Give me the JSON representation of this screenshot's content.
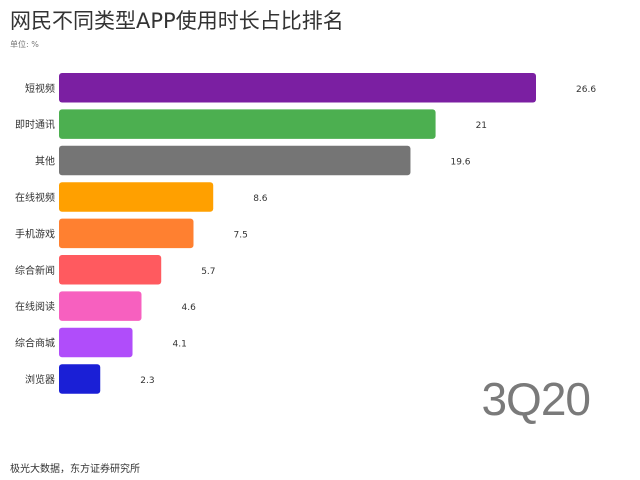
{
  "chart_data": {
    "type": "bar",
    "orientation": "horizontal",
    "title": "网民不同类型APP使用时长占比排名",
    "unit_label": "单位: %",
    "period_label": "3Q20",
    "source": "极光大数据，东方证券研究所",
    "categories": [
      "短视频",
      "即时通讯",
      "其他",
      "在线视频",
      "手机游戏",
      "综合新闻",
      "在线阅读",
      "综合商城",
      "浏览器"
    ],
    "values": [
      26.6,
      21,
      19.6,
      8.6,
      7.5,
      5.7,
      4.6,
      4.1,
      2.3
    ],
    "value_labels": [
      "26.6",
      "21",
      "19.6",
      "8.6",
      "7.5",
      "5.7",
      "4.6",
      "4.1",
      "2.3"
    ],
    "colors": [
      "#7b1fa2",
      "#4caf50",
      "#757575",
      "#ffa000",
      "#ff8030",
      "#ff5a5f",
      "#f760bf",
      "#b04dfa",
      "#1a1fd6"
    ],
    "xlim": [
      0,
      26.6
    ],
    "grid": false,
    "legend": "none"
  }
}
